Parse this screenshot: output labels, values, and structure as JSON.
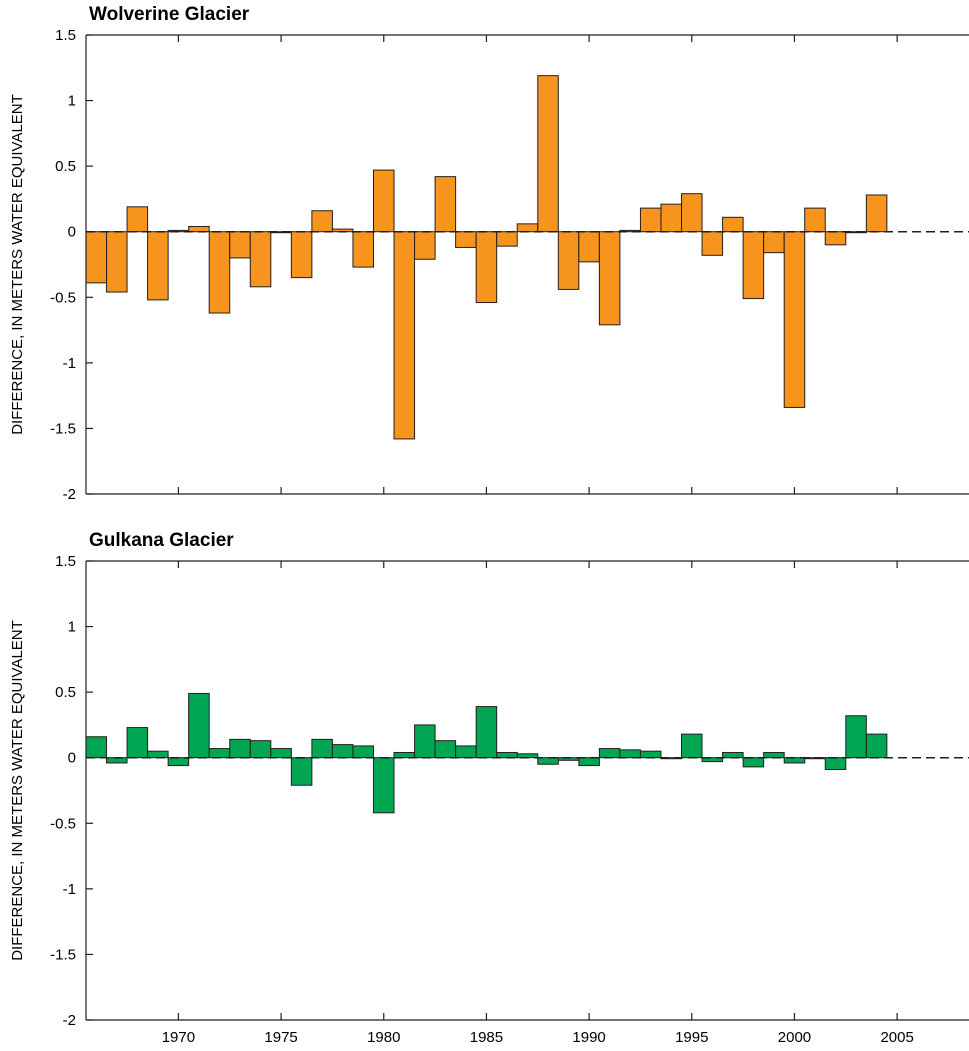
{
  "chart_data": [
    {
      "type": "bar",
      "title": "Wolverine Glacier",
      "ylabel": "DIFFERENCE, IN METERS WATER EQUIVALENT",
      "xlabel": "",
      "ylim": [
        -2,
        1.5
      ],
      "xlim": [
        1965.5,
        2008.5
      ],
      "yticks": [
        "1.5",
        "1",
        "0.5",
        "0",
        "-0.5",
        "-1",
        "-1.5",
        "-2"
      ],
      "xticks": [],
      "color": "#f7941d",
      "zero_line": "dashed",
      "x": [
        1966,
        1967,
        1968,
        1969,
        1970,
        1971,
        1972,
        1973,
        1974,
        1975,
        1976,
        1977,
        1978,
        1979,
        1980,
        1981,
        1982,
        1983,
        1984,
        1985,
        1986,
        1987,
        1988,
        1989,
        1990,
        1991,
        1992,
        1993,
        1994,
        1995,
        1996,
        1997,
        1998,
        1999,
        2000,
        2001,
        2002,
        2003,
        2004
      ],
      "values": [
        -0.39,
        -0.46,
        0.19,
        -0.52,
        0.01,
        0.04,
        -0.62,
        -0.2,
        -0.42,
        0.0,
        -0.35,
        0.16,
        0.02,
        -0.27,
        0.47,
        -1.58,
        -0.21,
        0.42,
        -0.12,
        -0.54,
        -0.11,
        0.06,
        1.19,
        -0.44,
        -0.23,
        -0.71,
        0.01,
        0.18,
        0.21,
        0.29,
        -0.18,
        0.11,
        -0.51,
        -0.16,
        -1.34,
        0.18,
        -0.1,
        0.0,
        0.28
      ]
    },
    {
      "type": "bar",
      "title": "Gulkana Glacier",
      "ylabel": "DIFFERENCE, IN METERS WATER EQUIVALENT",
      "xlabel": "",
      "ylim": [
        -2,
        1.5
      ],
      "xlim": [
        1965.5,
        2008.5
      ],
      "yticks": [
        "1.5",
        "1",
        "0.5",
        "0",
        "-0.5",
        "-1",
        "-1.5",
        "-2"
      ],
      "xticks": [
        "1970",
        "1975",
        "1980",
        "1985",
        "1990",
        "1995",
        "2000",
        "2005"
      ],
      "color": "#00a651",
      "zero_line": "dashed",
      "x": [
        1966,
        1967,
        1968,
        1969,
        1970,
        1971,
        1972,
        1973,
        1974,
        1975,
        1976,
        1977,
        1978,
        1979,
        1980,
        1981,
        1982,
        1983,
        1984,
        1985,
        1986,
        1987,
        1988,
        1989,
        1990,
        1991,
        1992,
        1993,
        1994,
        1995,
        1996,
        1997,
        1998,
        1999,
        2000,
        2001,
        2002,
        2003,
        2004
      ],
      "values": [
        0.16,
        -0.04,
        0.23,
        0.05,
        -0.06,
        0.49,
        0.07,
        0.14,
        0.13,
        0.07,
        -0.21,
        0.14,
        0.1,
        0.09,
        -0.42,
        0.04,
        0.25,
        0.13,
        0.09,
        0.39,
        0.04,
        0.03,
        -0.05,
        -0.02,
        -0.06,
        0.07,
        0.06,
        0.05,
        0.0,
        0.18,
        -0.03,
        0.04,
        -0.07,
        0.04,
        -0.04,
        0.0,
        -0.09,
        0.32,
        0.18
      ]
    }
  ]
}
